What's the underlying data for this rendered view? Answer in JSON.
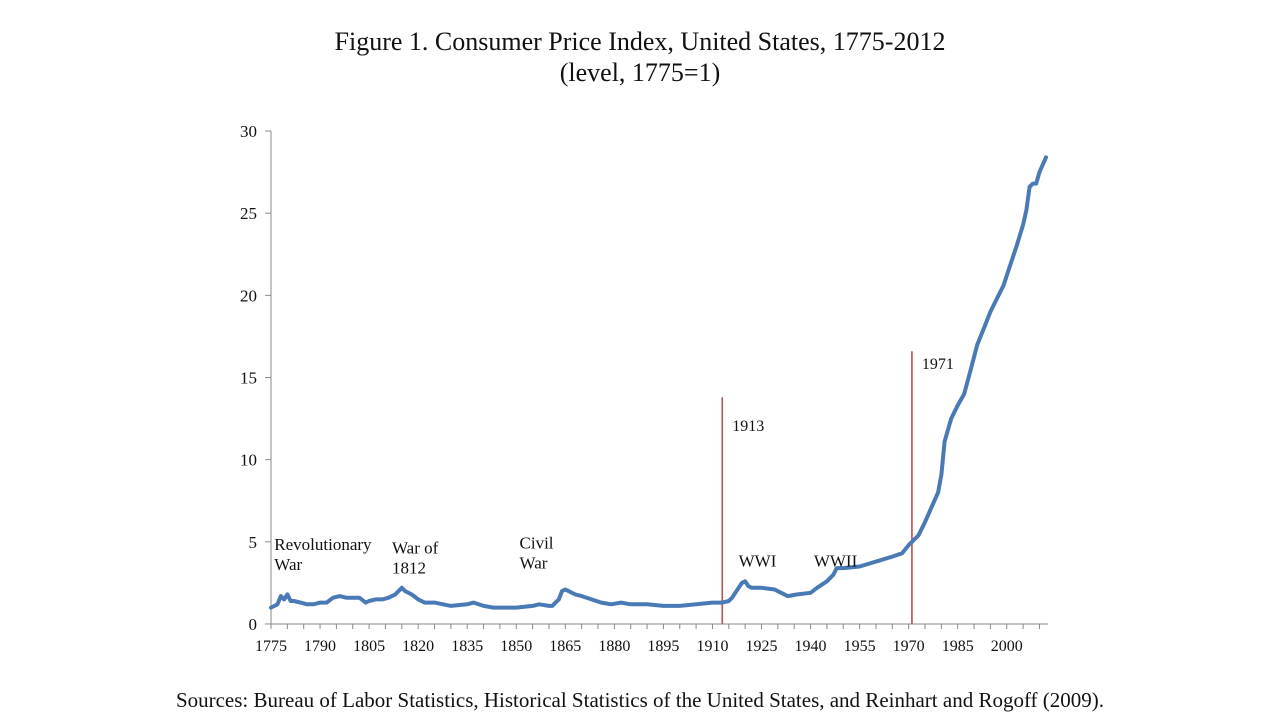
{
  "chart_data": {
    "type": "line",
    "title": "Figure 1. Consumer Price Index, United States, 1775-2012",
    "subtitle": "(level, 1775=1)",
    "xlabel": "",
    "ylabel": "",
    "xlim": [
      1775,
      2012
    ],
    "ylim": [
      0,
      30
    ],
    "y_ticks": [
      0,
      5,
      10,
      15,
      20,
      25,
      30
    ],
    "x_ticks": [
      1775,
      1790,
      1805,
      1820,
      1835,
      1850,
      1865,
      1880,
      1895,
      1910,
      1925,
      1940,
      1955,
      1970,
      1985,
      2000
    ],
    "grid": false,
    "line_color": "#4a7ab5",
    "marker_color": "#b5524e",
    "series": [
      {
        "x": [
          1775,
          1777,
          1778,
          1779,
          1780,
          1781,
          1782,
          1784,
          1786,
          1788,
          1790,
          1792,
          1794,
          1796,
          1798,
          1800,
          1802,
          1804,
          1805,
          1807,
          1809,
          1811,
          1813,
          1814,
          1815,
          1816,
          1818,
          1820,
          1822,
          1825,
          1830,
          1835,
          1837,
          1840,
          1843,
          1846,
          1850,
          1855,
          1857,
          1860,
          1861,
          1862,
          1863,
          1864,
          1865,
          1866,
          1868,
          1870,
          1873,
          1876,
          1879,
          1882,
          1885,
          1890,
          1895,
          1900,
          1905,
          1910,
          1913,
          1915,
          1916,
          1917,
          1918,
          1919,
          1920,
          1921,
          1922,
          1925,
          1929,
          1931,
          1933,
          1936,
          1940,
          1942,
          1945,
          1947,
          1948,
          1950,
          1955,
          1960,
          1965,
          1968,
          1970,
          1973,
          1975,
          1977,
          1979,
          1980,
          1981,
          1983,
          1985,
          1987,
          1989,
          1991,
          1993,
          1995,
          1997,
          1999,
          2001,
          2003,
          2005,
          2006,
          2007,
          2008,
          2009,
          2010,
          2012
        ],
        "values": [
          1.0,
          1.2,
          1.7,
          1.5,
          1.8,
          1.4,
          1.4,
          1.3,
          1.2,
          1.2,
          1.3,
          1.3,
          1.6,
          1.7,
          1.6,
          1.6,
          1.6,
          1.3,
          1.4,
          1.5,
          1.5,
          1.6,
          1.8,
          2.0,
          2.2,
          2.0,
          1.8,
          1.5,
          1.3,
          1.3,
          1.1,
          1.2,
          1.3,
          1.1,
          1.0,
          1.0,
          1.0,
          1.1,
          1.2,
          1.1,
          1.1,
          1.3,
          1.5,
          2.0,
          2.1,
          2.0,
          1.8,
          1.7,
          1.5,
          1.3,
          1.2,
          1.3,
          1.2,
          1.2,
          1.1,
          1.1,
          1.2,
          1.3,
          1.3,
          1.4,
          1.6,
          1.9,
          2.2,
          2.5,
          2.6,
          2.3,
          2.2,
          2.2,
          2.1,
          1.9,
          1.7,
          1.8,
          1.9,
          2.2,
          2.6,
          3.0,
          3.4,
          3.4,
          3.5,
          3.8,
          4.1,
          4.3,
          4.8,
          5.4,
          6.2,
          7.1,
          8.0,
          9.1,
          11.1,
          12.5,
          13.3,
          14.0,
          15.5,
          17.0,
          18.0,
          19.0,
          19.8,
          20.6,
          21.8,
          23.0,
          24.3,
          25.2,
          26.6,
          26.8,
          26.8,
          27.5,
          28.4
        ]
      }
    ],
    "markers": [
      {
        "x": 1913,
        "y_top": 13.8,
        "label": "1913"
      },
      {
        "x": 1971,
        "y_top": 16.6,
        "label": "1971"
      }
    ],
    "annotations": [
      {
        "lines": [
          "Revolutionary",
          "War"
        ],
        "x": 1776,
        "y": 4.5
      },
      {
        "lines": [
          "War of",
          "1812"
        ],
        "x": 1812,
        "y": 4.3
      },
      {
        "lines": [
          "Civil",
          "War"
        ],
        "x": 1851,
        "y": 4.6
      },
      {
        "lines": [
          "WWI"
        ],
        "x": 1918,
        "y": 3.5
      },
      {
        "lines": [
          "WWII"
        ],
        "x": 1941,
        "y": 3.5
      }
    ]
  },
  "footer": {
    "source": "Sources: Bureau of Labor Statistics, Historical Statistics of the United States, and Reinhart and Rogoff (2009)."
  }
}
